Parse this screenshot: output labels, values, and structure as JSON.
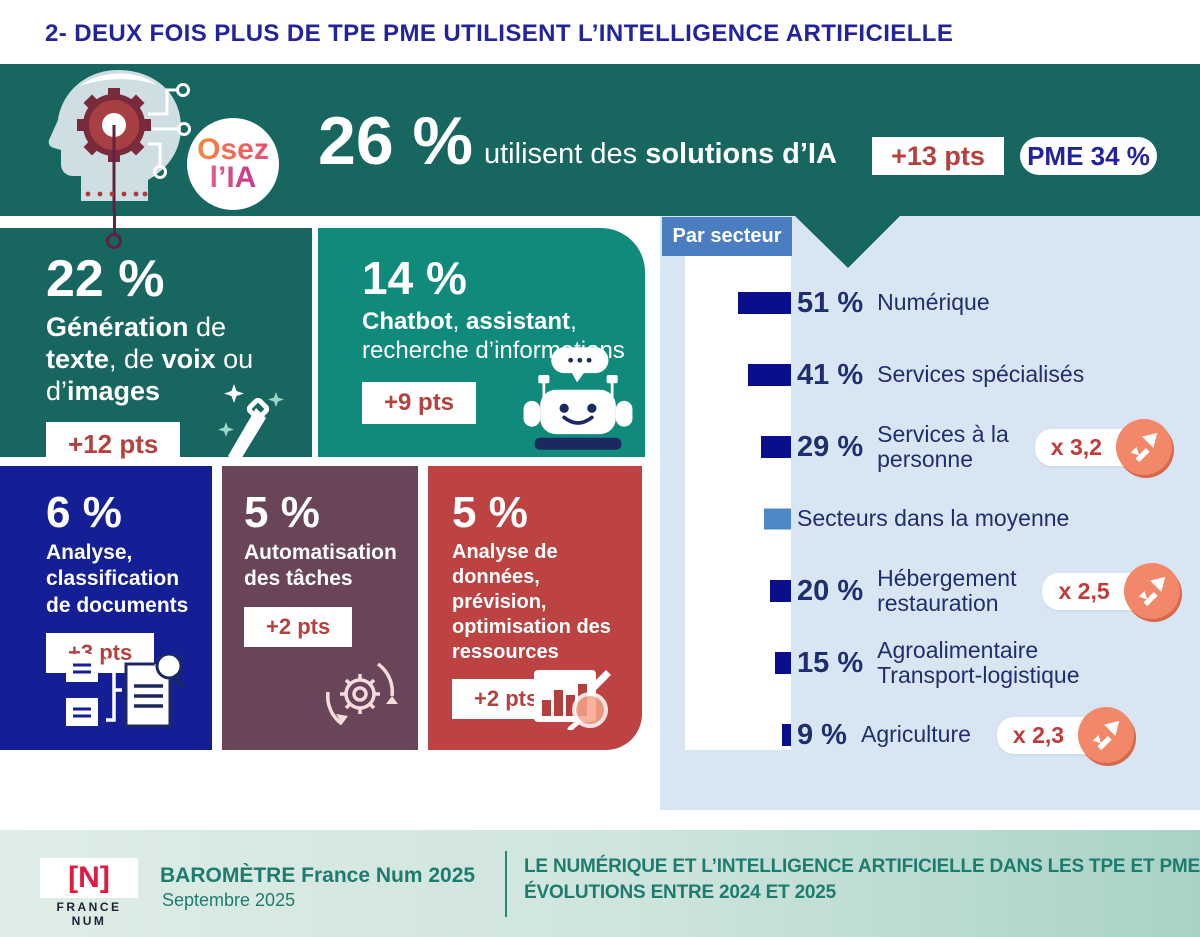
{
  "page_title": "2- DEUX FOIS PLUS DE TPE PME UTILISENT L’INTELLIGENCE ARTIFICIELLE",
  "hero": {
    "logo_line1": "Osez",
    "logo_line2": "l’IA",
    "headline_value": "26 %",
    "tagline_regular": "utilisent des ",
    "tagline_bold": "solutions d’IA",
    "delta_badge": "+13 pts",
    "pme_badge": "PME 34 %"
  },
  "usage_cards": [
    {
      "value": "22 %",
      "delta": "+12 pts",
      "icon": "magic-wand-icon",
      "segments": [
        [
          "Génération",
          true
        ],
        [
          " de\n",
          false
        ],
        [
          "texte",
          true
        ],
        [
          ", de ",
          false
        ],
        [
          "voix",
          true
        ],
        [
          " ou\nd’",
          false
        ],
        [
          "images",
          true
        ]
      ]
    },
    {
      "value": "14 %",
      "delta": "+9 pts",
      "icon": "chatbot-robot-icon",
      "segments": [
        [
          "Chatbot",
          true
        ],
        [
          ", ",
          false
        ],
        [
          "assistant",
          true
        ],
        [
          ",\n",
          false
        ],
        [
          "recherche d’informations",
          false
        ]
      ]
    },
    {
      "value": "6 %",
      "delta": "+3 pts",
      "icon": "documents-classification-icon",
      "segments": [
        [
          "Analyse,\nclassification\nde documents",
          true
        ]
      ]
    },
    {
      "value": "5 %",
      "delta": "+2 pts",
      "icon": "automation-gears-icon",
      "segments": [
        [
          "Automatisation\ndes tâches",
          true
        ]
      ]
    },
    {
      "value": "5 %",
      "delta": "+2 pts",
      "icon": "data-analysis-chart-icon",
      "segments": [
        [
          "Analyse de\ndonnées, prévision,\noptimisation des\nressources",
          true
        ]
      ]
    }
  ],
  "sector_panel": {
    "header": "Par secteur",
    "rows": [
      {
        "value": "51 %",
        "value_num": 51,
        "label_lines": [
          "Numérique"
        ],
        "multiplier": null,
        "bar": "navy"
      },
      {
        "value": "41 %",
        "value_num": 41,
        "label_lines": [
          "Services spécialisés"
        ],
        "multiplier": null,
        "bar": "navy"
      },
      {
        "value": "29 %",
        "value_num": 29,
        "label_lines": [
          "Services à la",
          "personne"
        ],
        "multiplier": "x 3,2",
        "bar": "navy"
      },
      {
        "value": "",
        "value_num": 26,
        "label_lines": [
          "Secteurs dans la  moyenne"
        ],
        "multiplier": null,
        "bar": "light"
      },
      {
        "value": "20 %",
        "value_num": 20,
        "label_lines": [
          "Hébergement",
          "restauration"
        ],
        "multiplier": "x 2,5",
        "bar": "navy"
      },
      {
        "value": "15 %",
        "value_num": 15,
        "label_lines": [
          "Agroalimentaire",
          "Transport-logistique"
        ],
        "multiplier": null,
        "bar": "navy"
      },
      {
        "value": "9 %",
        "value_num": 9,
        "label_lines": [
          "Agriculture"
        ],
        "multiplier": "x 2,3",
        "bar": "navy"
      }
    ]
  },
  "footer": {
    "logo_mark": "[N]",
    "logo_caption": "FRANCE NUM",
    "title": "BAROMÈTRE France Num 2025",
    "subtitle": "Septembre 2025",
    "right_line1": "LE NUMÉRIQUE ET L’INTELLIGENCE ARTIFICIELLE DANS LES TPE ET PME",
    "right_line2": "ÉVOLUTIONS ENTRE 2024 ET 2025"
  },
  "colors": {
    "title_navy": "#23239B",
    "hero_teal": "#17665F",
    "card_teal_bright": "#0F8A7B",
    "card_blue": "#141F96",
    "card_mauve": "#6A4458",
    "card_red": "#BC4341",
    "pts_red": "#B5413E",
    "panel_bg": "#D8E6F3",
    "panel_header_blue": "#4A7EC0",
    "bar_navy": "#0A0D8C",
    "bar_light_blue": "#4F88C7",
    "panel_text_navy": "#1F2F6E",
    "growth_orange": "#F2876A",
    "footer_teal": "#1E7C6F",
    "logo_red": "#E01A41"
  },
  "chart_data": [
    {
      "type": "bar",
      "orientation": "horizontal",
      "title": "Par secteur",
      "categories": [
        "Numérique",
        "Services spécialisés",
        "Services à la personne",
        "Secteurs dans la  moyenne",
        "Hébergement restauration",
        "Agroalimentaire Transport-logistique",
        "Agriculture"
      ],
      "values": [
        51,
        41,
        29,
        26,
        20,
        15,
        9
      ],
      "value_labels": [
        "51 %",
        "41 %",
        "29 %",
        null,
        "20 %",
        "15 %",
        "9 %"
      ],
      "growth_multipliers": [
        null,
        null,
        "x 3,2",
        null,
        "x 2,5",
        null,
        "x 2,3"
      ],
      "bar_colors": [
        "#0A0D8C",
        "#0A0D8C",
        "#0A0D8C",
        "#4F88C7",
        "#0A0D8C",
        "#0A0D8C",
        "#0A0D8C"
      ],
      "xlim": [
        0,
        60
      ],
      "note": "Barre « Secteurs dans la moyenne » sans étiquette, longueur estimée à la moyenne globale 26 %"
    },
    {
      "type": "bar",
      "orientation": "none-visual-cards",
      "categories": [
        "Génération de texte, de voix ou d’images",
        "Chatbot, assistant, recherche d’informations",
        "Analyse, classification de documents",
        "Automatisation des tâches",
        "Analyse de données, prévision, optimisation des ressources"
      ],
      "values": [
        22,
        14,
        6,
        5,
        5
      ],
      "deltas": [
        "+12 pts",
        "+9 pts",
        "+3 pts",
        "+2 pts",
        "+2 pts"
      ],
      "overall": {
        "value": 26,
        "delta": "+13 pts",
        "pme": 34
      }
    }
  ]
}
